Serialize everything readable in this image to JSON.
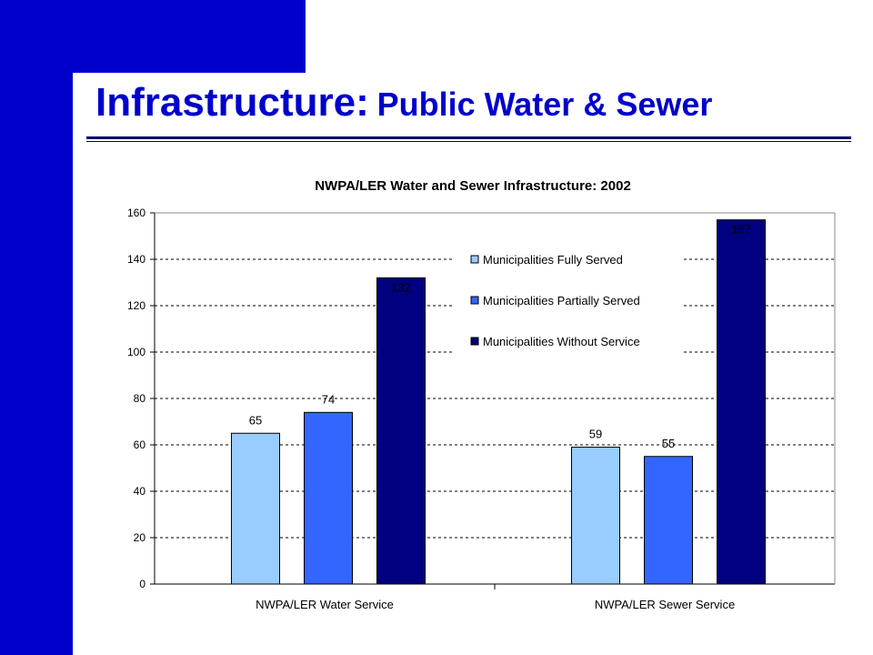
{
  "slide": {
    "title_main": "Infrastructure:",
    "title_sub": "Public Water & Sewer"
  },
  "colors": {
    "brand_blue": "#0000cc",
    "rule": "#000066",
    "series": [
      "#99ccff",
      "#3366ff",
      "#000080"
    ]
  },
  "chart_data": {
    "type": "bar",
    "title": "NWPA/LER Water and Sewer Infrastructure: 2002",
    "categories": [
      "NWPA/LER Water Service",
      "NWPA/LER Sewer Service"
    ],
    "series": [
      {
        "name": "Municipalities Fully Served",
        "values": [
          65,
          59
        ]
      },
      {
        "name": "Municipalities Partially Served",
        "values": [
          74,
          55
        ]
      },
      {
        "name": "Municipalities Without Service",
        "values": [
          132,
          157
        ]
      }
    ],
    "data_labels": [
      [
        "65",
        "59"
      ],
      [
        "74",
        "55"
      ],
      [
        "132",
        "157"
      ]
    ],
    "y_ticks": [
      0,
      20,
      40,
      60,
      80,
      100,
      120,
      140,
      160
    ],
    "ylim": [
      0,
      160
    ],
    "grid": "dashed horizontal",
    "legend_position": "top-center"
  }
}
